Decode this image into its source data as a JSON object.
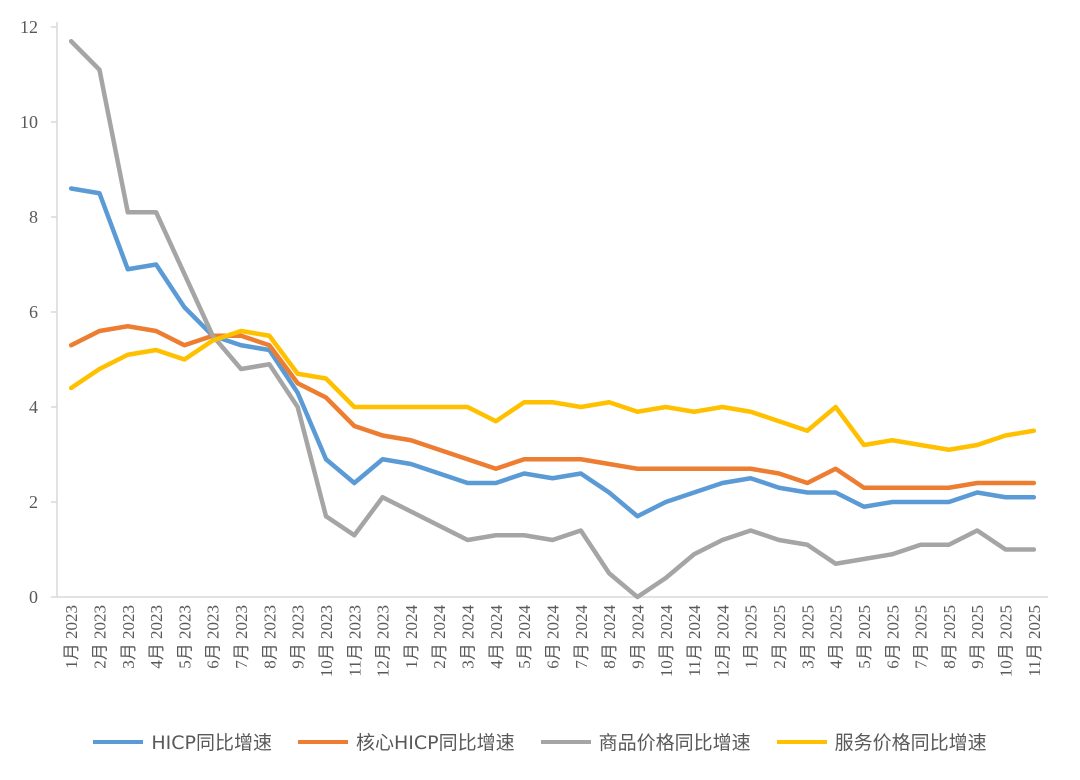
{
  "chart_data": {
    "type": "line",
    "categories": [
      "1月 2023",
      "2月 2023",
      "3月 2023",
      "4月 2023",
      "5月 2023",
      "6月 2023",
      "7月 2023",
      "8月 2023",
      "9月 2023",
      "10月 2023",
      "11月 2023",
      "12月 2023",
      "1月 2024",
      "2月 2024",
      "3月 2024",
      "4月 2024",
      "5月 2024",
      "6月 2024",
      "7月 2024",
      "8月 2024",
      "9月 2024",
      "10月 2024",
      "11月 2024",
      "12月 2024",
      "1月 2025",
      "2月 2025",
      "3月 2025",
      "4月 2025",
      "5月 2025",
      "6月 2025",
      "7月 2025",
      "8月 2025",
      "9月 2025",
      "10月 2025",
      "11月 2025"
    ],
    "ylim": [
      0,
      12
    ],
    "yticks": [
      "0",
      "2",
      "4",
      "6",
      "8",
      "10",
      "12"
    ],
    "grid": false,
    "legend_position": "bottom",
    "series": [
      {
        "name": "HICP同比增速",
        "color": "#5B9BD5",
        "values": [
          8.6,
          8.5,
          6.9,
          7.0,
          6.1,
          5.5,
          5.3,
          5.2,
          4.3,
          2.9,
          2.4,
          2.9,
          2.8,
          2.6,
          2.4,
          2.4,
          2.6,
          2.5,
          2.6,
          2.2,
          1.7,
          2.0,
          2.2,
          2.4,
          2.5,
          2.3,
          2.2,
          2.2,
          1.9,
          2.0,
          2.0,
          2.0,
          2.2,
          2.1,
          2.1
        ]
      },
      {
        "name": "核心HICP同比增速",
        "color": "#ED7D31",
        "values": [
          5.3,
          5.6,
          5.7,
          5.6,
          5.3,
          5.5,
          5.5,
          5.3,
          4.5,
          4.2,
          3.6,
          3.4,
          3.3,
          3.1,
          2.9,
          2.7,
          2.9,
          2.9,
          2.9,
          2.8,
          2.7,
          2.7,
          2.7,
          2.7,
          2.7,
          2.6,
          2.4,
          2.7,
          2.3,
          2.3,
          2.3,
          2.3,
          2.4,
          2.4,
          2.4
        ]
      },
      {
        "name": "商品价格同比增速",
        "color": "#A5A5A5",
        "values": [
          11.7,
          11.1,
          8.1,
          8.1,
          6.8,
          5.5,
          4.8,
          4.9,
          4.0,
          1.7,
          1.3,
          2.1,
          1.8,
          1.5,
          1.2,
          1.3,
          1.3,
          1.2,
          1.4,
          0.5,
          0.0,
          0.4,
          0.9,
          1.2,
          1.4,
          1.2,
          1.1,
          0.7,
          0.8,
          0.9,
          1.1,
          1.1,
          1.4,
          1.0,
          1.0
        ]
      },
      {
        "name": "服务价格同比增速",
        "color": "#FFC000",
        "values": [
          4.4,
          4.8,
          5.1,
          5.2,
          5.0,
          5.4,
          5.6,
          5.5,
          4.7,
          4.6,
          4.0,
          4.0,
          4.0,
          4.0,
          4.0,
          3.7,
          4.1,
          4.1,
          4.0,
          4.1,
          3.9,
          4.0,
          3.9,
          4.0,
          3.9,
          3.7,
          3.5,
          4.0,
          3.2,
          3.3,
          3.2,
          3.1,
          3.2,
          3.4,
          3.5
        ]
      }
    ]
  }
}
